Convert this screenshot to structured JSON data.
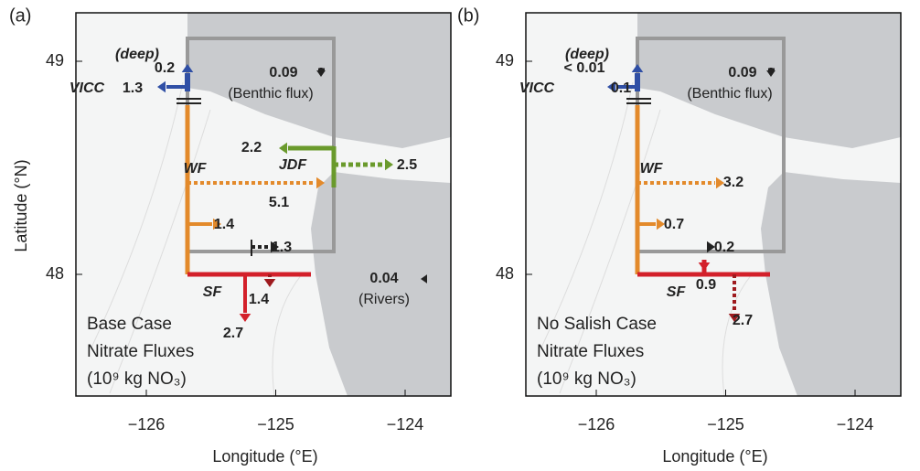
{
  "panels": [
    {
      "label": "(a)",
      "xlabel": "Longitude (°E)",
      "ylabel": "Latitude (°N)",
      "xticks": [
        {
          "value": -126,
          "label": "−126"
        },
        {
          "value": -125,
          "label": "−125"
        },
        {
          "value": -124,
          "label": "−124"
        }
      ],
      "yticks": [
        49,
        48
      ],
      "annotations": [
        "(deep)",
        "0.2",
        "VICC",
        "1.3",
        "0.09",
        "(Benthic flux)",
        "2.2",
        "JDF",
        "2.5",
        "WF",
        "1.4",
        "5.1",
        "1.3",
        "0.04",
        "(Rivers)",
        "SF",
        "1.4",
        "2.7"
      ],
      "legend": [
        "Base Case",
        "Nitrate Fluxes",
        "(10⁹ kg NO₃)"
      ]
    },
    {
      "label": "(b)",
      "xlabel": "Longitude (°E)",
      "xticks": [
        {
          "value": -126,
          "label": "−126"
        },
        {
          "value": -125,
          "label": "−125"
        },
        {
          "value": -124,
          "label": "−124"
        }
      ],
      "yticks": [
        49,
        48
      ],
      "annotations": [
        "(deep)",
        "< 0.01",
        "VICC",
        "0.1",
        "0.09",
        "(Benthic flux)",
        "WF",
        "3.2",
        "0.7",
        "0.2",
        "SF",
        "0.9",
        "2.7"
      ],
      "legend": [
        "No Salish Case",
        "Nitrate Fluxes",
        "(10⁹ kg NO₃)"
      ]
    }
  ]
}
